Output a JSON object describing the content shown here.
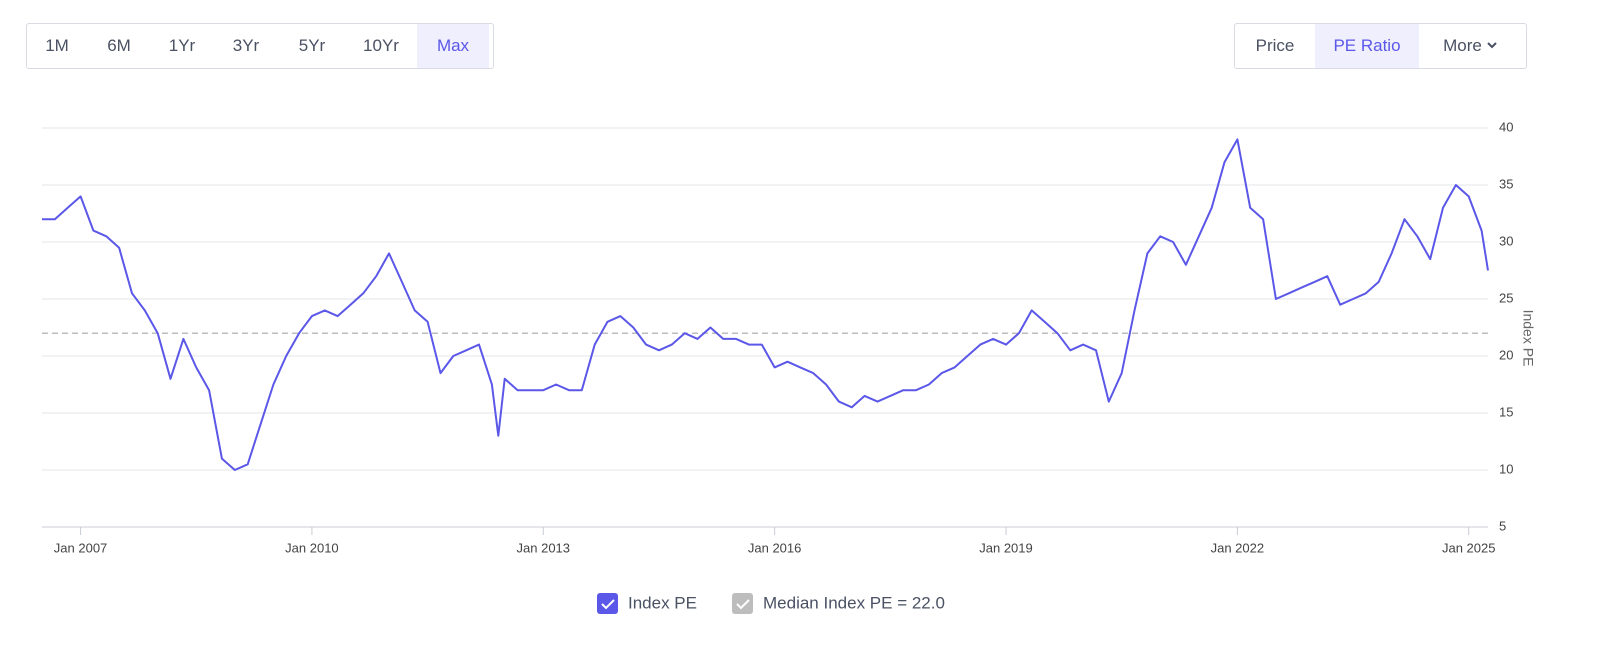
{
  "range_buttons": [
    {
      "label": "1M"
    },
    {
      "label": "6M"
    },
    {
      "label": "1Yr"
    },
    {
      "label": "3Yr"
    },
    {
      "label": "5Yr"
    },
    {
      "label": "10Yr"
    },
    {
      "label": "Max",
      "selected": true
    }
  ],
  "view_buttons": [
    {
      "label": "Price"
    },
    {
      "label": "PE Ratio",
      "selected": true
    },
    {
      "label": "More"
    }
  ],
  "chart_data": {
    "type": "line",
    "y_label": "Index PE",
    "x": [
      "2006-07",
      "2006-09",
      "2006-11",
      "2007-01",
      "2007-03",
      "2007-05",
      "2007-07",
      "2007-09",
      "2007-11",
      "2008-01",
      "2008-03",
      "2008-05",
      "2008-07",
      "2008-09",
      "2008-11",
      "2009-01",
      "2009-03",
      "2009-05",
      "2009-07",
      "2009-09",
      "2009-11",
      "2010-01",
      "2010-03",
      "2010-05",
      "2010-07",
      "2010-09",
      "2010-11",
      "2011-01",
      "2011-03",
      "2011-05",
      "2011-07",
      "2011-09",
      "2011-11",
      "2012-01",
      "2012-03",
      "2012-05",
      "2012-06",
      "2012-07",
      "2012-09",
      "2012-11",
      "2013-01",
      "2013-03",
      "2013-05",
      "2013-07",
      "2013-09",
      "2013-11",
      "2014-01",
      "2014-03",
      "2014-05",
      "2014-07",
      "2014-09",
      "2014-11",
      "2015-01",
      "2015-03",
      "2015-05",
      "2015-07",
      "2015-09",
      "2015-11",
      "2016-01",
      "2016-03",
      "2016-05",
      "2016-07",
      "2016-09",
      "2016-11",
      "2017-01",
      "2017-03",
      "2017-05",
      "2017-07",
      "2017-09",
      "2017-11",
      "2018-01",
      "2018-03",
      "2018-05",
      "2018-07",
      "2018-09",
      "2018-11",
      "2019-01",
      "2019-03",
      "2019-05",
      "2019-07",
      "2019-09",
      "2019-11",
      "2020-01",
      "2020-03",
      "2020-05",
      "2020-07",
      "2020-09",
      "2020-11",
      "2021-01",
      "2021-03",
      "2021-05",
      "2021-07",
      "2021-09",
      "2021-11",
      "2022-01",
      "2022-03",
      "2022-05",
      "2022-07",
      "2022-09",
      "2022-11",
      "2023-01",
      "2023-03",
      "2023-05",
      "2023-07",
      "2023-09",
      "2023-11",
      "2024-01",
      "2024-03",
      "2024-05",
      "2024-07",
      "2024-09",
      "2024-11",
      "2025-01",
      "2025-03",
      "2025-04"
    ],
    "series": [
      {
        "name": "Index PE",
        "color": "#5b57e8",
        "values": [
          32,
          32,
          33,
          34,
          31,
          30.5,
          29.5,
          25.5,
          24,
          22,
          18,
          21.5,
          19,
          17,
          11,
          10,
          10.5,
          14,
          17.5,
          20,
          22,
          23.5,
          24,
          23.5,
          24.5,
          25.5,
          27,
          29,
          26.5,
          24,
          23,
          18.5,
          20,
          20.5,
          21,
          17.5,
          13,
          18,
          17,
          17,
          17,
          17.5,
          17,
          17,
          21,
          23,
          23.5,
          22.5,
          21,
          20.5,
          21,
          22,
          21.5,
          22.5,
          21.5,
          21.5,
          21,
          21,
          19,
          19.5,
          19,
          18.5,
          17.5,
          16,
          15.5,
          16.5,
          16,
          16.5,
          17,
          17,
          17.5,
          18.5,
          19,
          20,
          21,
          21.5,
          21,
          22,
          24,
          23,
          22,
          20.5,
          21,
          20.5,
          16,
          18.5,
          24,
          29,
          30.5,
          30,
          28,
          30.5,
          33,
          37,
          39,
          33,
          32,
          25,
          25.5,
          26,
          26.5,
          27,
          24.5,
          25,
          25.5,
          26.5,
          29,
          32,
          30.5,
          28.5,
          33,
          35,
          34,
          31,
          27.5
        ]
      }
    ],
    "reference_line": {
      "name": "Median Index PE = 22.0",
      "value": 22,
      "color": "#bdbdbd"
    },
    "xlim": [
      "2006-07",
      "2025-04"
    ],
    "xticks": [
      {
        "value": "2007-01",
        "label": "Jan 2007"
      },
      {
        "value": "2010-01",
        "label": "Jan 2010"
      },
      {
        "value": "2013-01",
        "label": "Jan 2013"
      },
      {
        "value": "2016-01",
        "label": "Jan 2016"
      },
      {
        "value": "2019-01",
        "label": "Jan 2019"
      },
      {
        "value": "2022-01",
        "label": "Jan 2022"
      },
      {
        "value": "2025-01",
        "label": "Jan 2025"
      }
    ],
    "ylim": [
      5,
      40
    ],
    "yticks": [
      5,
      10,
      15,
      20,
      25,
      30,
      35,
      40
    ],
    "grid": true
  }
}
